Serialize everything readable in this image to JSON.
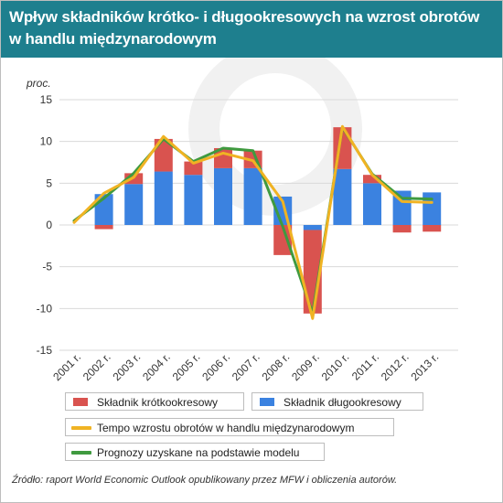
{
  "header": {
    "title": "Wpływ składników krótko- i długookresowych na wzrost obrotów w handlu międzynarodowym"
  },
  "source_note": "Źródło: raport World Economic Outlook opublikowany przez MFW i obliczenia autorów.",
  "colors": {
    "header_bg": "#1e7f8e",
    "short_term": "#d9534f",
    "long_term": "#3b82e0",
    "actual_line": "#f0b323",
    "model_line": "#3f9a3f",
    "grid": "#d9d9d9"
  },
  "chart_data": {
    "type": "bar",
    "stacked": true,
    "ylabel": "proc.",
    "ylim": [
      -15,
      15
    ],
    "yticks": [
      -15,
      -10,
      -5,
      0,
      5,
      10,
      15
    ],
    "grid": true,
    "legend_position": "bottom",
    "categories": [
      "2001 r.",
      "2002 r.",
      "2003 r.",
      "2004 r.",
      "2005 r.",
      "2006 r.",
      "2007 r.",
      "2008 r.",
      "2009 r.",
      "2010 r.",
      "2011 r.",
      "2012 r.",
      "2013 r."
    ],
    "series": [
      {
        "name": "Składnik krótkookresowy",
        "kind": "bar",
        "values": [
          0,
          -0.5,
          1.3,
          3.9,
          1.6,
          2.4,
          2.1,
          -3.6,
          -10.0,
          5.0,
          1.0,
          -0.9,
          -0.8
        ]
      },
      {
        "name": "Składnik długookresowy",
        "kind": "bar",
        "values": [
          0,
          3.7,
          4.9,
          6.4,
          6.0,
          6.8,
          6.8,
          3.4,
          -0.6,
          6.7,
          5.0,
          4.1,
          3.9
        ]
      },
      {
        "name": "Tempo wzrostu obrotów w handlu międzynarodowym",
        "kind": "line",
        "values": [
          0.3,
          3.8,
          5.7,
          10.6,
          7.4,
          8.6,
          7.7,
          2.8,
          -11.2,
          11.8,
          6.0,
          2.8,
          2.7
        ]
      },
      {
        "name": "Prognozy uzyskane na podstawie modelu",
        "kind": "line",
        "values": [
          0.5,
          3.2,
          6.2,
          10.3,
          7.6,
          9.2,
          8.9,
          -0.2,
          -10.6,
          11.7,
          6.1,
          3.2,
          3.1
        ]
      }
    ]
  }
}
